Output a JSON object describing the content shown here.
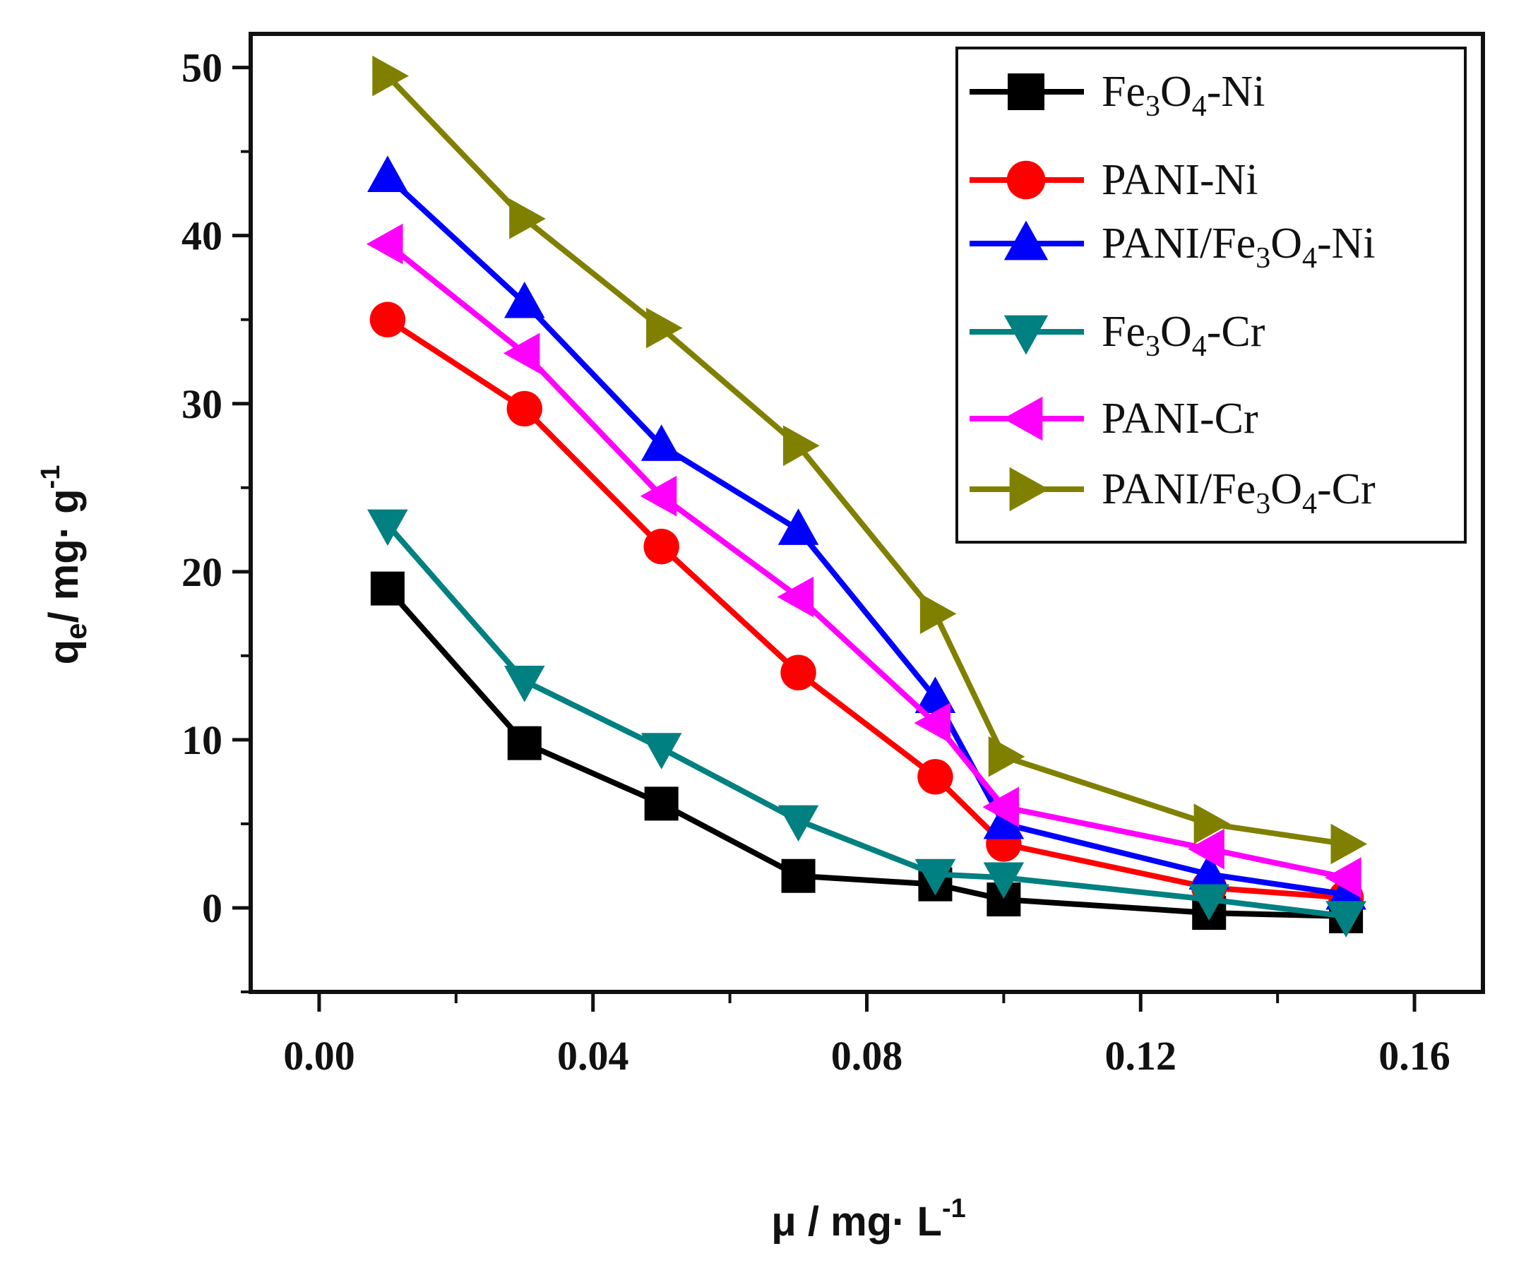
{
  "chart_data": {
    "type": "line",
    "title": "",
    "xlabel": {
      "main": "μ / mg· L",
      "sup": "-1"
    },
    "ylabel": {
      "q": "q",
      "sub": "e",
      "main": "/ mg· g",
      "sup": "-1"
    },
    "xlim": [
      -0.01,
      0.17
    ],
    "ylim": [
      -5,
      52
    ],
    "xticks": [
      0.0,
      0.04,
      0.08,
      0.12,
      0.16
    ],
    "xtick_labels": [
      "0.00",
      "0.04",
      "0.08",
      "0.12",
      "0.16"
    ],
    "yticks": [
      0,
      10,
      20,
      30,
      40,
      50
    ],
    "ytick_labels": [
      "0",
      "10",
      "20",
      "30",
      "40",
      "50"
    ],
    "grid": false,
    "legend_position": "top-right",
    "x": [
      0.01,
      0.03,
      0.05,
      0.07,
      0.09,
      0.1,
      0.13,
      0.15
    ],
    "series": [
      {
        "name": "Fe3O4-Ni",
        "parts": [
          "Fe",
          "3",
          "O",
          "4",
          "-Ni"
        ],
        "color": "#000000",
        "marker": "square",
        "values": [
          19,
          9.8,
          6.2,
          1.9,
          1.4,
          0.5,
          -0.3,
          -0.5
        ]
      },
      {
        "name": "PANI-Ni",
        "parts": [
          "PANI-Ni"
        ],
        "color": "#ff0000",
        "marker": "circle",
        "values": [
          35,
          29.7,
          21.5,
          14,
          7.8,
          3.8,
          1.2,
          0.6
        ]
      },
      {
        "name": "PANI/Fe3O4-Ni",
        "parts": [
          "PANI/Fe",
          "3",
          "O",
          "4",
          "-Ni"
        ],
        "color": "#0000ff",
        "marker": "triangle-up",
        "values": [
          43.5,
          36,
          27.5,
          22.5,
          12.5,
          5,
          2,
          0.8
        ]
      },
      {
        "name": "Fe3O4-Cr",
        "parts": [
          "Fe",
          "3",
          "O",
          "4",
          "-Cr"
        ],
        "color": "#008080",
        "marker": "triangle-down",
        "values": [
          22.8,
          13.5,
          9.5,
          5.2,
          2,
          1.8,
          0.5,
          -0.5
        ]
      },
      {
        "name": "PANI-Cr",
        "parts": [
          "PANI-Cr"
        ],
        "color": "#ff00ff",
        "marker": "triangle-left",
        "values": [
          39.5,
          33,
          24.5,
          18.5,
          11,
          6,
          3.5,
          1.8
        ]
      },
      {
        "name": "PANI/Fe3O4-Cr",
        "parts": [
          "PANI/Fe",
          "3",
          "O",
          "4",
          "-Cr"
        ],
        "color": "#808000",
        "marker": "triangle-right",
        "values": [
          49.5,
          41,
          34.5,
          27.5,
          17.5,
          9,
          5,
          3.8
        ]
      }
    ]
  }
}
